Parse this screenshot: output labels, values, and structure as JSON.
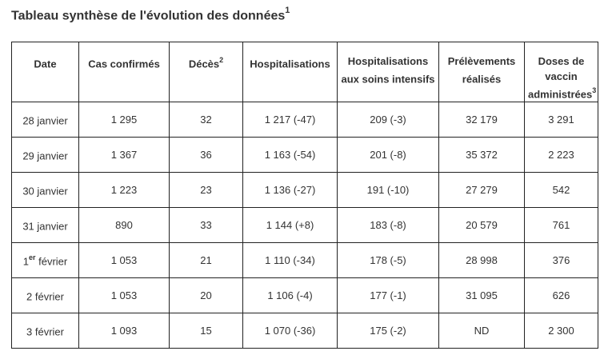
{
  "title": {
    "text": "Tableau synthèse de l'évolution des données",
    "note": "1"
  },
  "headers": [
    {
      "text": "Date",
      "note": ""
    },
    {
      "text": "Cas confirmés",
      "note": ""
    },
    {
      "text": "Décès",
      "note": "2"
    },
    {
      "text": "Hospitalisations",
      "note": ""
    },
    {
      "text": "Hospitalisations aux soins intensifs",
      "note": ""
    },
    {
      "text": "Prélèvements réalisés",
      "note": ""
    },
    {
      "text": "Doses de vaccin administrées",
      "note": "3"
    }
  ],
  "rows": [
    {
      "date": "28 janvier",
      "date_sup": "",
      "date_rest": "",
      "cas": "1 295",
      "deces": "32",
      "hosp": "1 217 (-47)",
      "soins": "209 (-3)",
      "prelev": "32 179",
      "doses": "3 291"
    },
    {
      "date": "29 janvier",
      "date_sup": "",
      "date_rest": "",
      "cas": "1 367",
      "deces": "36",
      "hosp": "1 163 (-54)",
      "soins": "201 (-8)",
      "prelev": "35 372",
      "doses": "2 223"
    },
    {
      "date": "30 janvier",
      "date_sup": "",
      "date_rest": "",
      "cas": "1 223",
      "deces": "23",
      "hosp": "1 136 (-27)",
      "soins": "191 (-10)",
      "prelev": "27 279",
      "doses": "542"
    },
    {
      "date": "31 janvier",
      "date_sup": "",
      "date_rest": "",
      "cas": "890",
      "deces": "33",
      "hosp": "1 144 (+8)",
      "soins": "183 (-8)",
      "prelev": "20 579",
      "doses": "761"
    },
    {
      "date": "1",
      "date_sup": "er",
      "date_rest": " février",
      "cas": "1 053",
      "deces": "21",
      "hosp": "1 110 (-34)",
      "soins": "178 (-5)",
      "prelev": "28 998",
      "doses": "376"
    },
    {
      "date": "2 février",
      "date_sup": "",
      "date_rest": "",
      "cas": "1 053",
      "deces": "20",
      "hosp": "1 106 (-4)",
      "soins": "177 (-1)",
      "prelev": "31 095",
      "doses": "626"
    },
    {
      "date": "3 février",
      "date_sup": "",
      "date_rest": "",
      "cas": "1 093",
      "deces": "15",
      "hosp": "1 070 (-36)",
      "soins": "175 (-2)",
      "prelev": "ND",
      "doses": "2 300"
    }
  ]
}
